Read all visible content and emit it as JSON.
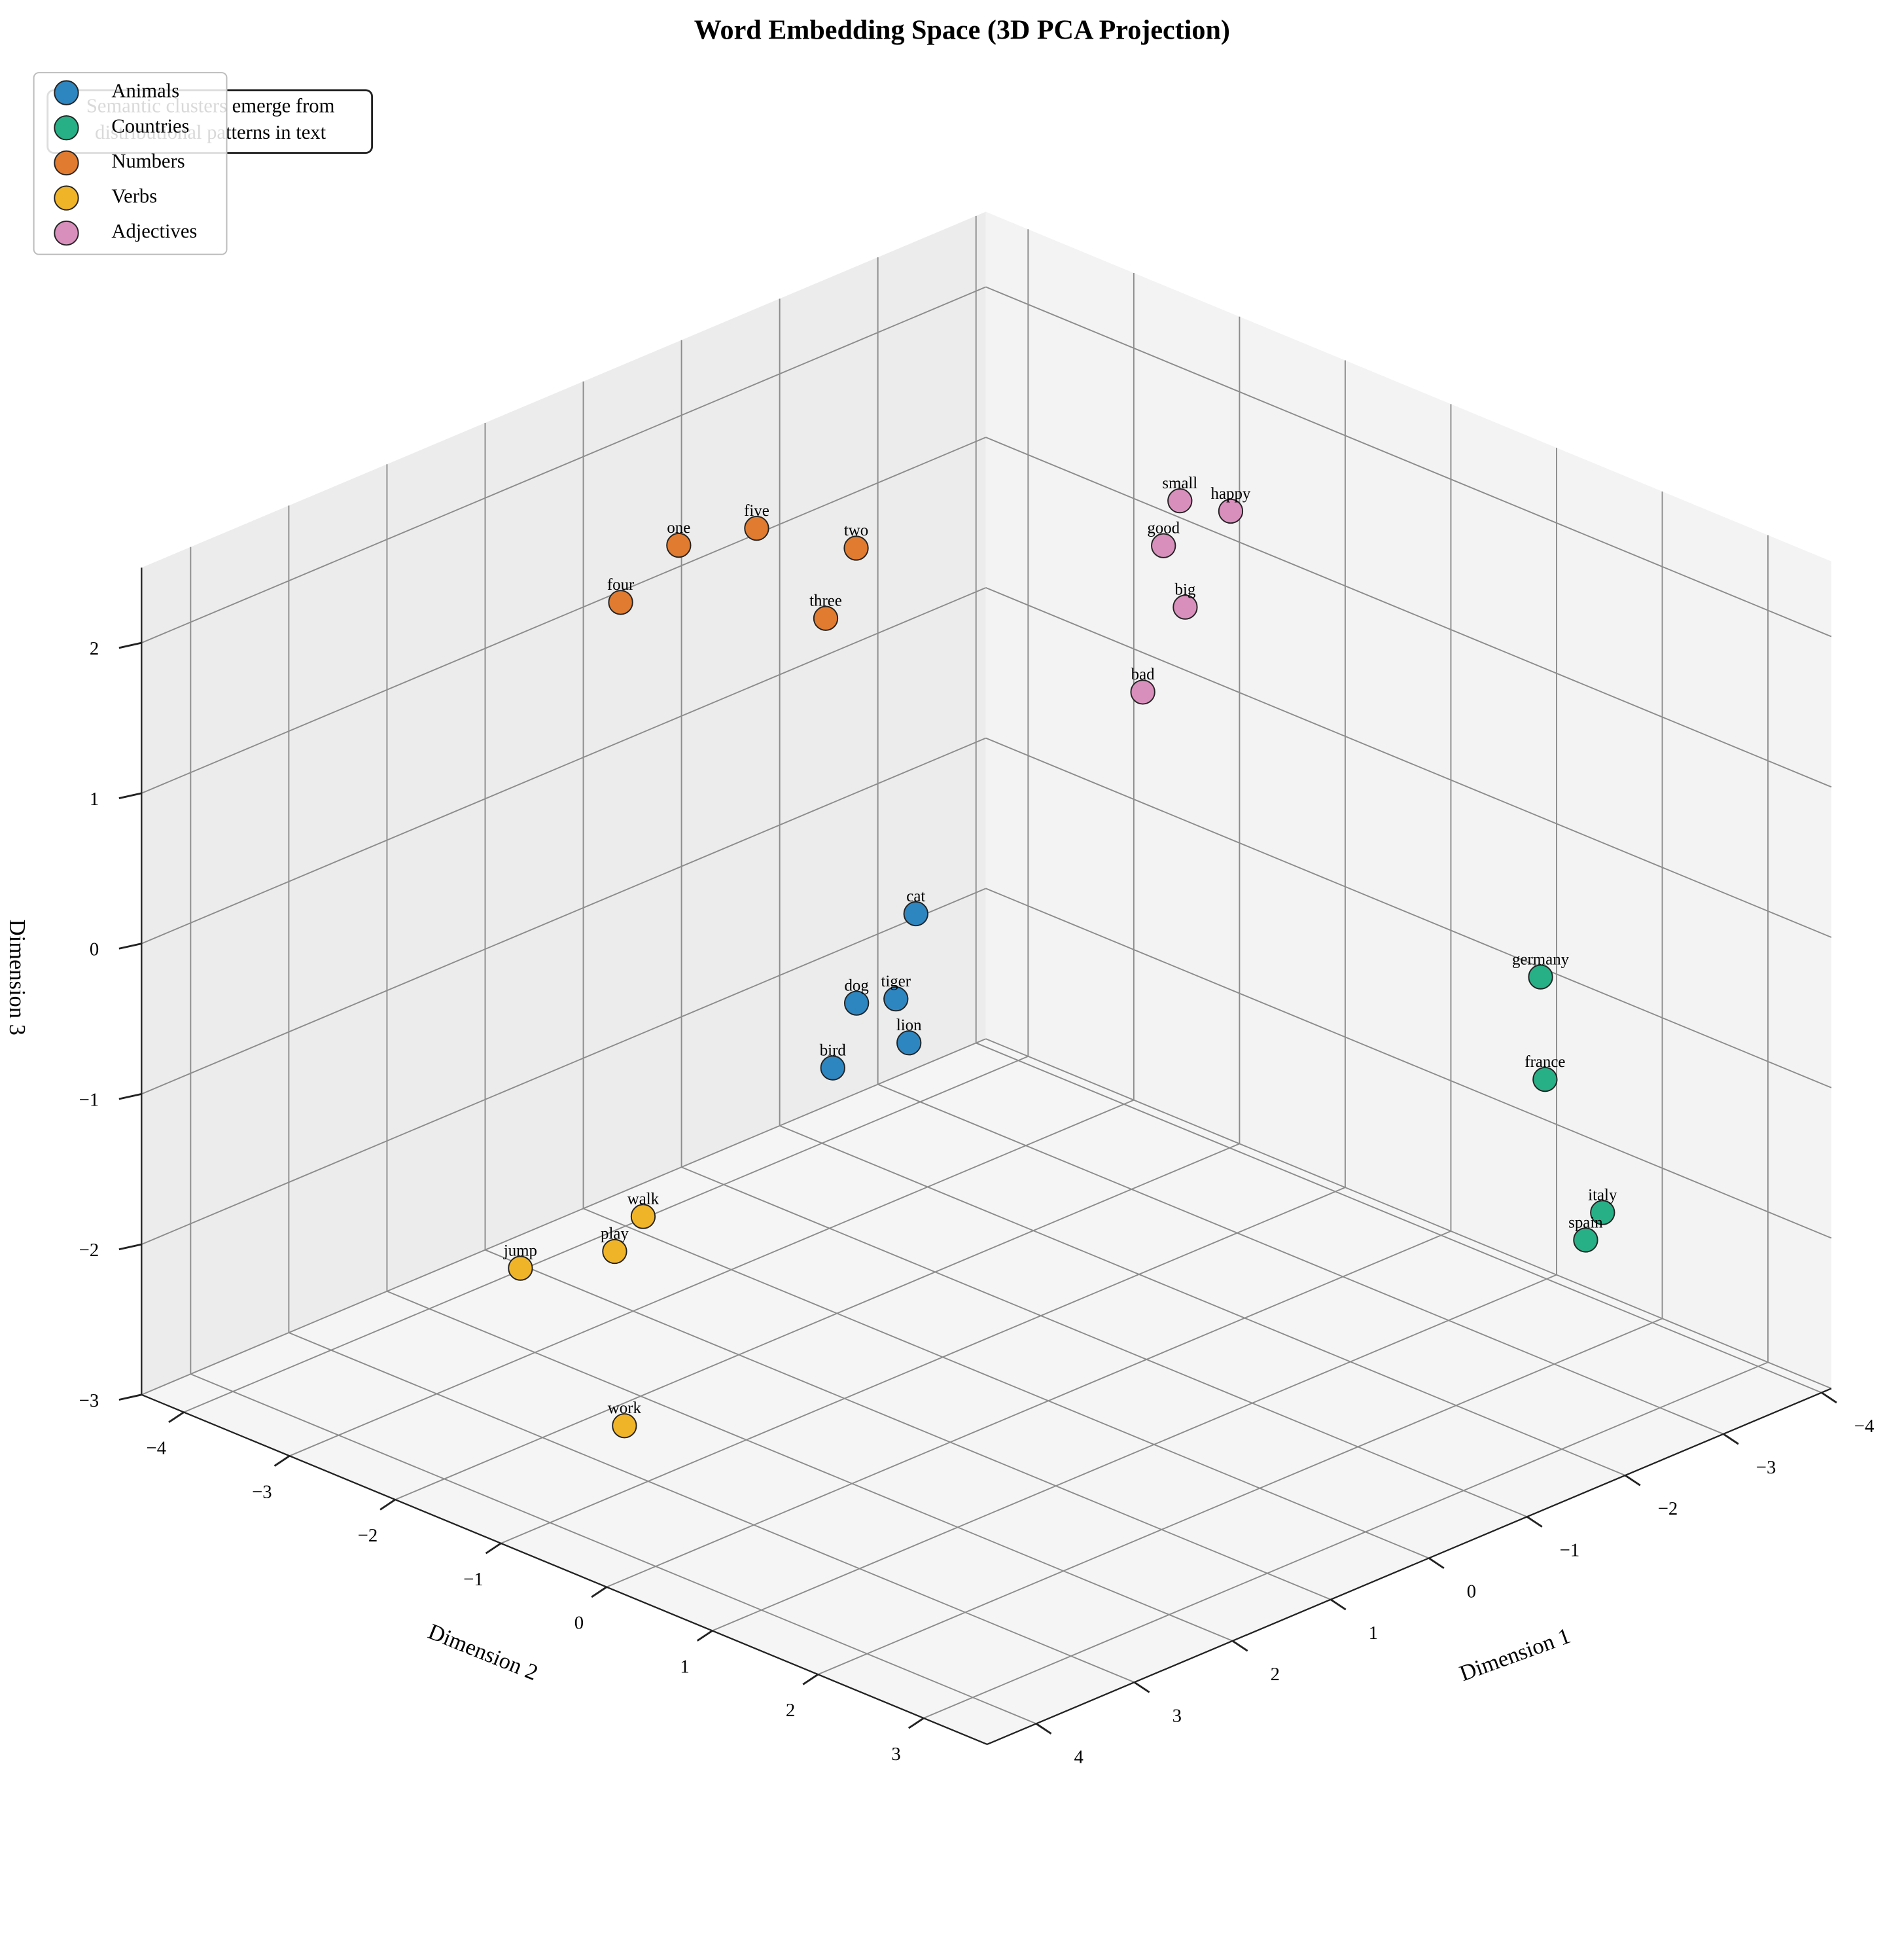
{
  "chart_data": {
    "type": "scatter3d",
    "title": "Word Embedding Space (3D PCA Projection)",
    "xlabel": "Dimension 1",
    "ylabel": "Dimension 2",
    "zlabel": "Dimension 3",
    "annotation": [
      "Semantic clusters emerge from",
      "distributional patterns in text"
    ],
    "xlim": [
      -4.1,
      4.5
    ],
    "ylim": [
      -4.4,
      3.6
    ],
    "zlim": [
      -3,
      2.5
    ],
    "xticks": [
      {
        "value": -4,
        "label": "−4"
      },
      {
        "value": -3,
        "label": "−3"
      },
      {
        "value": -2,
        "label": "−2"
      },
      {
        "value": -1,
        "label": "−1"
      },
      0,
      1,
      2,
      3,
      4
    ],
    "yticks": [
      {
        "value": -4,
        "label": "−4"
      },
      {
        "value": -3,
        "label": "−3"
      },
      {
        "value": -2,
        "label": "−2"
      },
      {
        "value": -1,
        "label": "−1"
      },
      0,
      1,
      2,
      3
    ],
    "zticks": [
      {
        "value": -3,
        "label": "−3"
      },
      {
        "value": -2,
        "label": "−2"
      },
      {
        "value": -1,
        "label": "−1"
      },
      0,
      1,
      2
    ],
    "grid": true,
    "legend": "upper left",
    "series": [
      {
        "name": "Animals",
        "color": "#2e86c1",
        "labels": [
          "cat",
          "dog",
          "tiger",
          "lion",
          "bird"
        ],
        "x": [
          0.23,
          1.62,
          1.37,
          1.84,
          2.53
        ],
        "y": [
          -1.04,
          -0.31,
          -0.17,
          0.39,
          0.31
        ],
        "z": [
          0,
          0,
          0,
          0,
          0
        ]
      },
      {
        "name": "Countries",
        "color": "#27b086",
        "labels": [
          "germany",
          "france",
          "italy",
          "spain"
        ],
        "x": [
          -2.15,
          -1.84,
          -2.34,
          -1.92
        ],
        "y": [
          2.66,
          2.99,
          3.07,
          3.3
        ],
        "z": [
          0,
          -0.5,
          -1.5,
          -1.5
        ]
      },
      {
        "name": "Numbers",
        "color": "#e07b2f",
        "labels": [
          "one",
          "five",
          "two",
          "four",
          "three"
        ],
        "x": [
          0.6,
          0.0,
          -0.26,
          1.59,
          0.75
        ],
        "y": [
          -2.94,
          -2.76,
          -2.06,
          -2.57,
          -1.41
        ],
        "z": [
          2,
          2,
          2,
          2,
          2
        ]
      },
      {
        "name": "Verbs",
        "color": "#f0b429",
        "labels": [
          "walk",
          "jump",
          "play",
          "work"
        ],
        "x": [
          1.63,
          2.88,
          2.2,
          3.36
        ],
        "y": [
          -2.32,
          -2.32,
          -2.06,
          -0.89
        ],
        "z": [
          -2,
          -2,
          -2,
          -2.5
        ]
      },
      {
        "name": "Adjectives",
        "color": "#d98fbc",
        "labels": [
          "small",
          "happy",
          "good",
          "big",
          "bad"
        ],
        "x": [
          -2.47,
          -2.6,
          -1.84,
          -1.2,
          0.05
        ],
        "y": [
          -1.05,
          -0.69,
          -0.62,
          0.18,
          0.94
        ],
        "z": [
          2,
          2,
          2,
          2,
          2
        ]
      }
    ]
  }
}
